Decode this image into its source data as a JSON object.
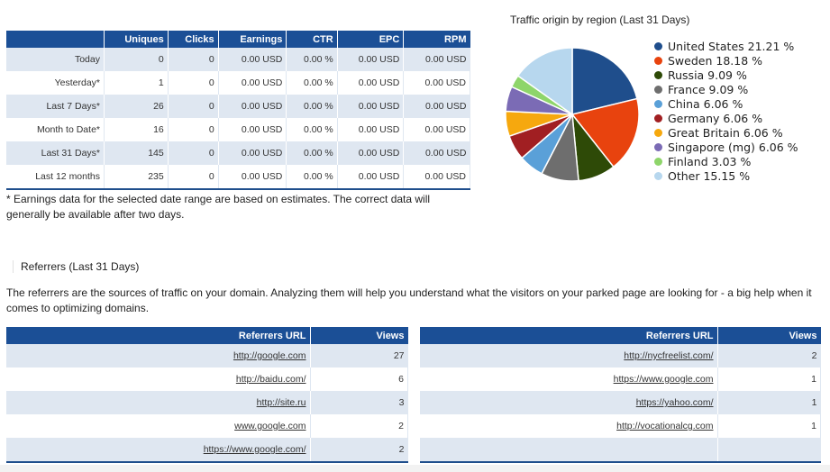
{
  "stats": {
    "headers": [
      "",
      "Uniques",
      "Clicks",
      "Earnings",
      "CTR",
      "EPC",
      "RPM"
    ],
    "rows": [
      [
        "Today",
        "0",
        "0",
        "0.00 USD",
        "0.00 %",
        "0.00 USD",
        "0.00 USD"
      ],
      [
        "Yesterday*",
        "1",
        "0",
        "0.00 USD",
        "0.00 %",
        "0.00 USD",
        "0.00 USD"
      ],
      [
        "Last 7 Days*",
        "26",
        "0",
        "0.00 USD",
        "0.00 %",
        "0.00 USD",
        "0.00 USD"
      ],
      [
        "Month to Date*",
        "16",
        "0",
        "0.00 USD",
        "0.00 %",
        "0.00 USD",
        "0.00 USD"
      ],
      [
        "Last 31 Days*",
        "145",
        "0",
        "0.00 USD",
        "0.00 %",
        "0.00 USD",
        "0.00 USD"
      ],
      [
        "Last 12 months",
        "235",
        "0",
        "0.00 USD",
        "0.00 %",
        "0.00 USD",
        "0.00 USD"
      ]
    ],
    "note": "* Earnings data for the selected date range are based on estimates. The correct data will generally be available after two days."
  },
  "chart_data": {
    "type": "pie",
    "title": "Traffic origin by region (Last 31 Days)",
    "legend_position": "right",
    "slices": [
      {
        "label": "United States 21.21 %",
        "value": 21.21,
        "color": "#1f4e8c"
      },
      {
        "label": "Sweden 18.18 %",
        "value": 18.18,
        "color": "#e8430e"
      },
      {
        "label": "Russia 9.09 %",
        "value": 9.09,
        "color": "#2e4a07"
      },
      {
        "label": "France 9.09 %",
        "value": 9.09,
        "color": "#6e6e6e"
      },
      {
        "label": "China 6.06 %",
        "value": 6.06,
        "color": "#5aa0d8"
      },
      {
        "label": "Germany 6.06 %",
        "value": 6.06,
        "color": "#a11f22"
      },
      {
        "label": "Great Britain 6.06 %",
        "value": 6.06,
        "color": "#f6a80e"
      },
      {
        "label": "Singapore (mg) 6.06 %",
        "value": 6.06,
        "color": "#7b6bb5"
      },
      {
        "label": "Finland 3.03 %",
        "value": 3.03,
        "color": "#8ed56a"
      },
      {
        "label": "Other 15.15 %",
        "value": 15.15,
        "color": "#b7d7ee"
      }
    ]
  },
  "referrers": {
    "heading": "Referrers (Last 31 Days)",
    "description": "The referrers are the sources of traffic on your domain. Analyzing them will help you understand what the visitors on your parked page are looking for - a big help when it comes to optimizing domains.",
    "header_url": "Referrers URL",
    "header_views": "Views",
    "left": [
      {
        "url": "http://google.com",
        "views": "27"
      },
      {
        "url": "http://baidu.com/",
        "views": "6"
      },
      {
        "url": "http://site.ru",
        "views": "3"
      },
      {
        "url": "www.google.com",
        "views": "2"
      },
      {
        "url": "https://www.google.com/",
        "views": "2"
      }
    ],
    "right": [
      {
        "url": "http://nycfreelist.com/",
        "views": "2"
      },
      {
        "url": "https://www.google.com",
        "views": "1"
      },
      {
        "url": "https://yahoo.com/",
        "views": "1"
      },
      {
        "url": "http://vocationalcg.com",
        "views": "1"
      },
      {
        "url": "",
        "views": ""
      }
    ]
  }
}
